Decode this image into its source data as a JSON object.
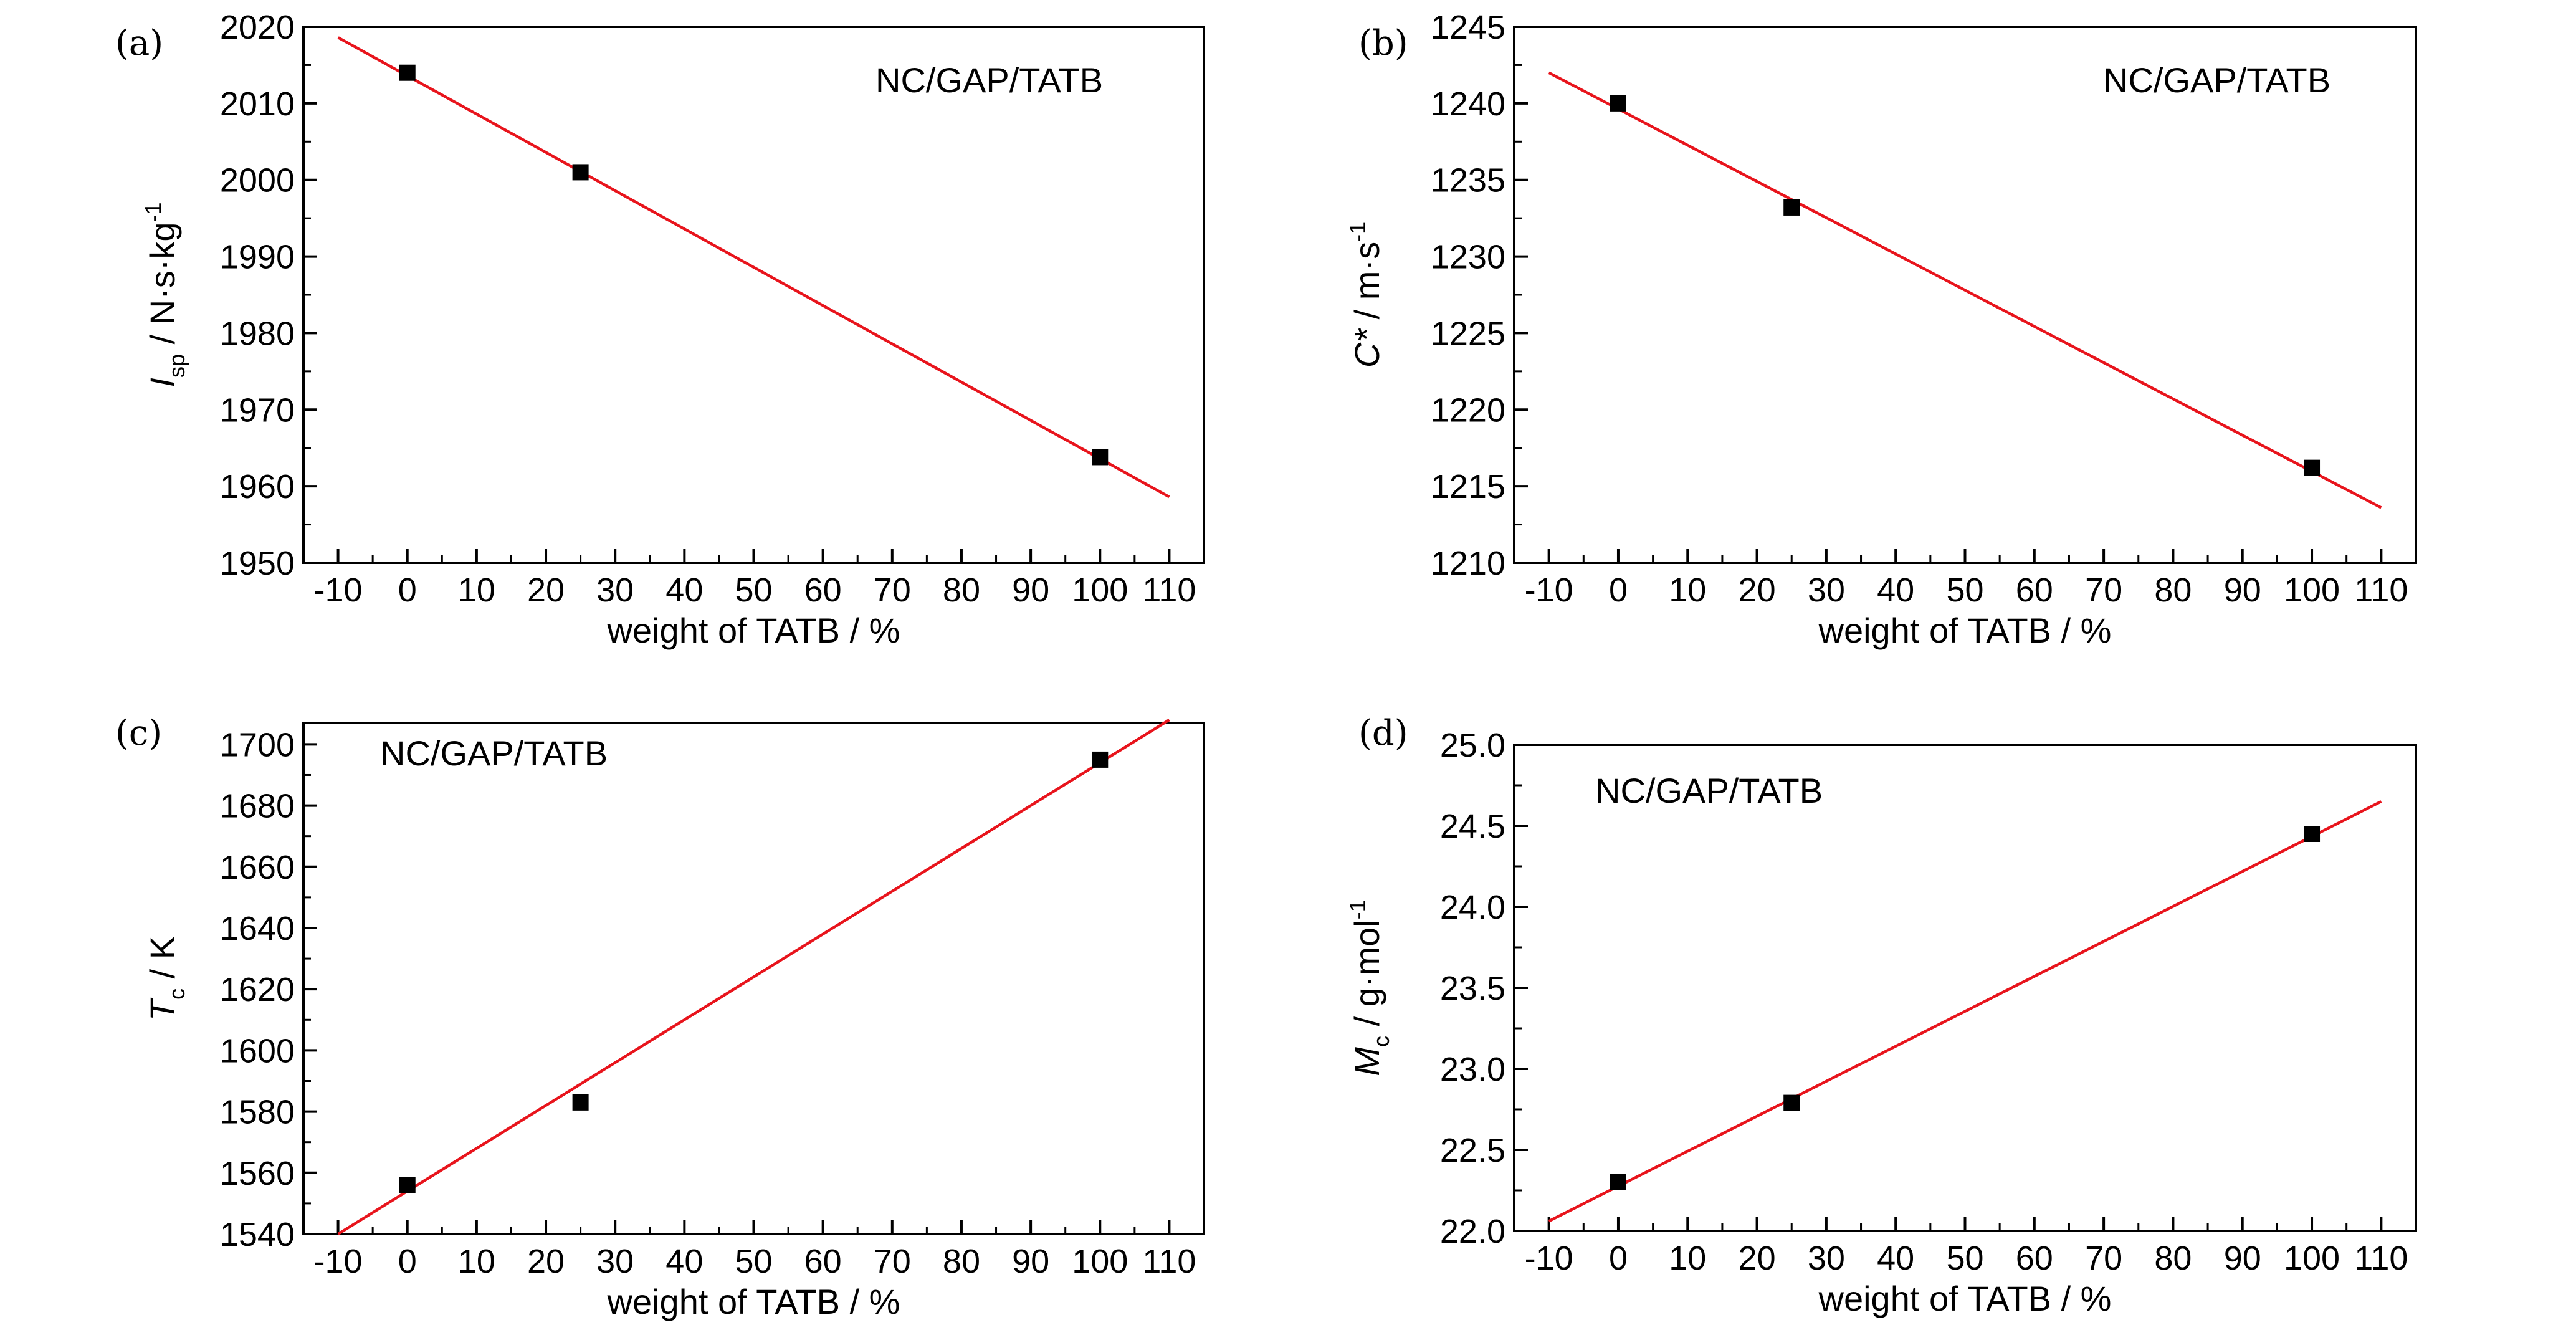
{
  "chart_data": [
    {
      "type": "scatter",
      "panel": "(a)",
      "annotation": "NC/GAP/TATB",
      "xlabel": "weight of TATB / %",
      "ylabel": {
        "symbol": "I",
        "subscript": "sp",
        "unit": " / N·s·kg",
        "superscript": "-1"
      },
      "xlim": [
        -15,
        115
      ],
      "ylim": [
        1950,
        2020
      ],
      "xticks": [
        -10,
        0,
        10,
        20,
        30,
        40,
        50,
        60,
        70,
        80,
        90,
        100,
        110
      ],
      "yticks": [
        1950,
        1960,
        1970,
        1980,
        1990,
        2000,
        2010,
        2020
      ],
      "points": [
        {
          "x": 0,
          "y": 2014
        },
        {
          "x": 25,
          "y": 2001
        },
        {
          "x": 100,
          "y": 1963.8
        }
      ],
      "fit_line": {
        "x": [
          -10,
          110
        ],
        "y": [
          2018.6,
          1958.6
        ]
      },
      "line_color": "#e8141c",
      "marker_color": "#000000"
    },
    {
      "type": "scatter",
      "panel": "(b)",
      "annotation": "NC/GAP/TATB",
      "xlabel": "weight of TATB / %",
      "ylabel": {
        "symbol": "C*",
        "subscript": "",
        "unit": " / m·s",
        "superscript": "-1"
      },
      "xlim": [
        -15,
        115
      ],
      "ylim": [
        1210,
        1245
      ],
      "xticks": [
        -10,
        0,
        10,
        20,
        30,
        40,
        50,
        60,
        70,
        80,
        90,
        100,
        110
      ],
      "yticks": [
        1210,
        1215,
        1220,
        1225,
        1230,
        1235,
        1240,
        1245
      ],
      "points": [
        {
          "x": 0,
          "y": 1240
        },
        {
          "x": 25,
          "y": 1233.2
        },
        {
          "x": 100,
          "y": 1216.2
        }
      ],
      "fit_line": {
        "x": [
          -10,
          110
        ],
        "y": [
          1242,
          1213.6
        ]
      },
      "line_color": "#e8141c",
      "marker_color": "#000000"
    },
    {
      "type": "scatter",
      "panel": "(c)",
      "annotation": "NC/GAP/TATB",
      "xlabel": "weight of TATB / %",
      "ylabel": {
        "symbol": "T",
        "subscript": "c",
        "unit": " / K",
        "superscript": ""
      },
      "xlim": [
        -15,
        115
      ],
      "ylim": [
        1540,
        1707
      ],
      "xticks": [
        -10,
        0,
        10,
        20,
        30,
        40,
        50,
        60,
        70,
        80,
        90,
        100,
        110
      ],
      "yticks": [
        1540,
        1560,
        1580,
        1600,
        1620,
        1640,
        1660,
        1680,
        1700
      ],
      "points": [
        {
          "x": 0,
          "y": 1556
        },
        {
          "x": 25,
          "y": 1583
        },
        {
          "x": 100,
          "y": 1695
        }
      ],
      "fit_line": {
        "x": [
          -10,
          110
        ],
        "y": [
          1540,
          1708
        ]
      },
      "line_color": "#e8141c",
      "marker_color": "#000000"
    },
    {
      "type": "scatter",
      "panel": "(d)",
      "annotation": "NC/GAP/TATB",
      "xlabel": "weight of TATB / %",
      "ylabel": {
        "symbol": "M",
        "subscript": "c",
        "unit": " / g·mol",
        "superscript": "-1"
      },
      "xlim": [
        -15,
        115
      ],
      "ylim": [
        22.0,
        25.0
      ],
      "xticks": [
        -10,
        0,
        10,
        20,
        30,
        40,
        50,
        60,
        70,
        80,
        90,
        100,
        110
      ],
      "yticks": [
        "22.0",
        "22.5",
        "23.0",
        "23.5",
        "24.0",
        "24.5",
        "25.0"
      ],
      "points": [
        {
          "x": 0,
          "y": 22.3
        },
        {
          "x": 25,
          "y": 22.79
        },
        {
          "x": 100,
          "y": 24.45
        }
      ],
      "fit_line": {
        "x": [
          -10,
          110
        ],
        "y": [
          22.06,
          24.65
        ]
      },
      "line_color": "#e8141c",
      "marker_color": "#000000"
    }
  ]
}
